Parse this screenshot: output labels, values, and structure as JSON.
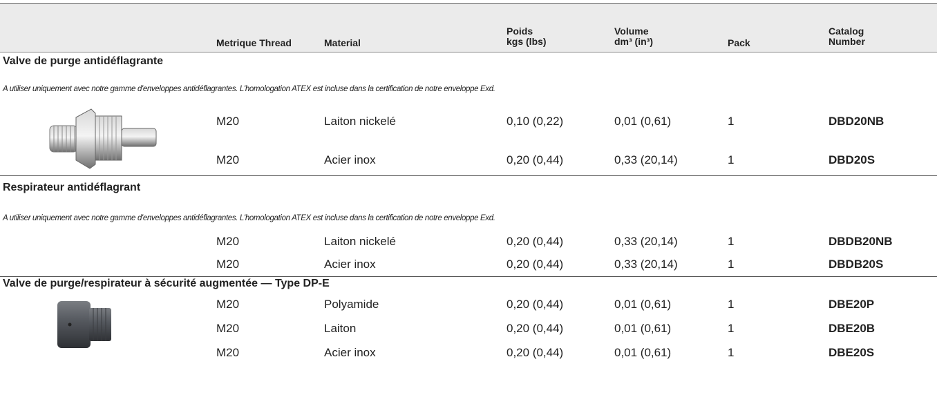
{
  "table": {
    "columns": [
      [
        "Metrique Thread"
      ],
      [
        "Material"
      ],
      [
        "Poids",
        "kgs (lbs)"
      ],
      [
        "Volume",
        "dm³ (in³)"
      ],
      [
        "Pack"
      ],
      [
        "Catalog",
        "Number"
      ]
    ],
    "sections": [
      {
        "title": "Valve de purge antidéflagrante",
        "note": "A utiliser uniquement avec notre gamme d'enveloppes antidéflagrantes. L'homologation ATEX est incluse dans la certification de notre enveloppe Exd.",
        "rows": [
          [
            "M20",
            "Laiton nickelé",
            "0,10 (0,22)",
            "0,01 (0,61)",
            "1",
            "DBD20NB"
          ],
          [
            "M20",
            "Acier inox",
            "0,20 (0,44)",
            "0,33 (20,14)",
            "1",
            "DBD20S"
          ]
        ]
      },
      {
        "title": "Respirateur antidéflagrant",
        "note": "A utiliser uniquement avec notre gamme d'enveloppes antidéflagrantes. L'homologation ATEX est incluse dans la certification de notre enveloppe Exd.",
        "rows": [
          [
            "M20",
            "Laiton nickelé",
            "0,20 (0,44)",
            "0,33 (20,14)",
            "1",
            "DBDB20NB"
          ],
          [
            "M20",
            "Acier inox",
            "0,20 (0,44)",
            "0,33 (20,14)",
            "1",
            "DBDB20S"
          ]
        ]
      },
      {
        "title": "Valve de purge/respirateur à sécurité augmentée — Type DP-E",
        "rows": [
          [
            "M20",
            "Polyamide",
            "0,20 (0,44)",
            "0,01 (0,61)",
            "1",
            "DBE20P"
          ],
          [
            "M20",
            "Laiton",
            "0,20 (0,44)",
            "0,01 (0,61)",
            "1",
            "DBE20B"
          ],
          [
            "M20",
            "Acier inox",
            "0,20 (0,44)",
            "0,01 (0,61)",
            "1",
            "DBE20S"
          ]
        ]
      }
    ]
  }
}
